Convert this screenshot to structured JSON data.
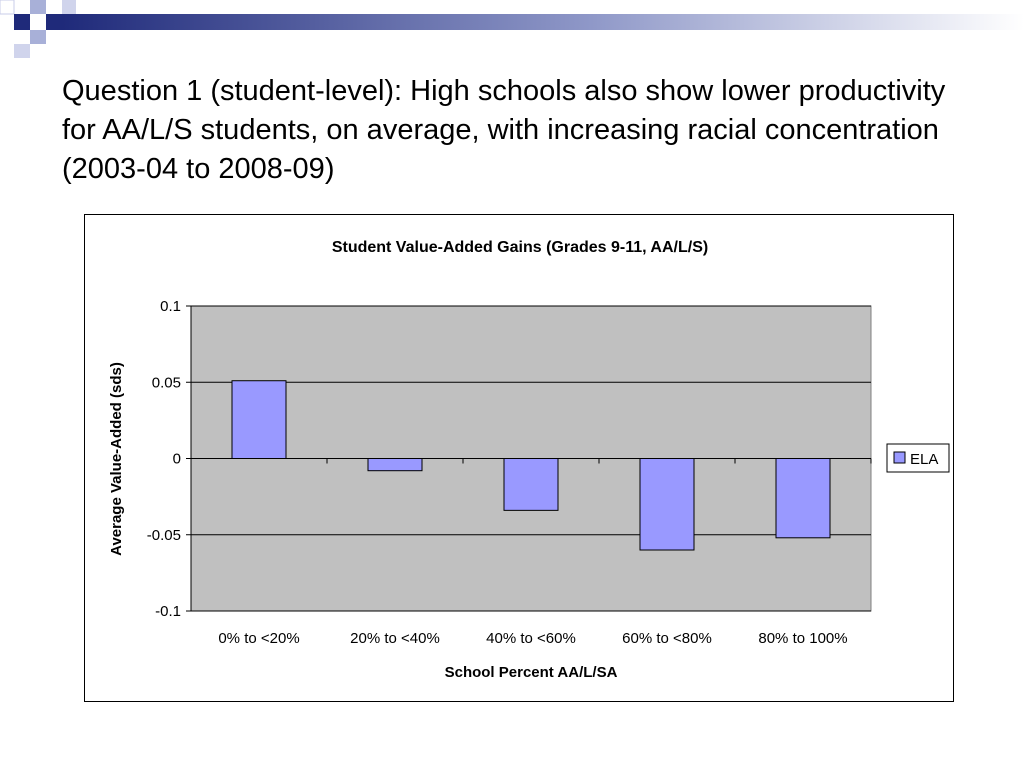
{
  "slide": {
    "title": "Question 1 (student-level):  High schools also show lower productivity for AA/L/S students, on average, with increasing racial concentration (2003-04 to 2008-09)"
  },
  "colors": {
    "bar_fill": "#9999ff",
    "plot_bg": "#c0c0c0",
    "banner_dark": "#1f2a7a",
    "banner_light": "#a8b0d8"
  },
  "chart_data": {
    "type": "bar",
    "title": "Student Value-Added Gains (Grades 9-11, AA/L/S)",
    "xlabel": "School Percent AA/L/SA",
    "ylabel": "Average Value-Added (sds)",
    "categories": [
      "0% to <20%",
      "20% to <40%",
      "40% to <60%",
      "60% to <80%",
      "80% to 100%"
    ],
    "series": [
      {
        "name": "ELA",
        "values": [
          0.051,
          -0.008,
          -0.034,
          -0.06,
          -0.052
        ]
      }
    ],
    "ylim": [
      -0.1,
      0.1
    ],
    "yticks": [
      0.1,
      0.05,
      0,
      -0.05,
      -0.1
    ],
    "ytick_labels": [
      "0.1",
      "0.05",
      "0",
      "-0.05",
      "-0.1"
    ],
    "grid": true,
    "legend_position": "right"
  }
}
